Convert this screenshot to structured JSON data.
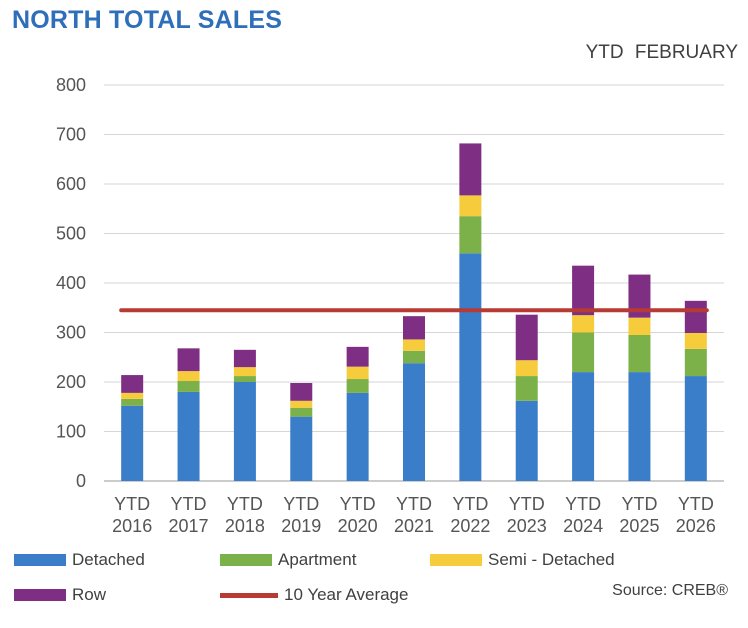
{
  "chart_data": {
    "type": "bar",
    "stacked": true,
    "title": "NORTH TOTAL SALES",
    "subtitle": "YTD  FEBRUARY",
    "categories": [
      [
        "YTD",
        "2016"
      ],
      [
        "YTD",
        "2017"
      ],
      [
        "YTD",
        "2018"
      ],
      [
        "YTD",
        "2019"
      ],
      [
        "YTD",
        "2020"
      ],
      [
        "YTD",
        "2021"
      ],
      [
        "YTD",
        "2022"
      ],
      [
        "YTD",
        "2023"
      ],
      [
        "YTD",
        "2024"
      ],
      [
        "YTD",
        "2025"
      ],
      [
        "YTD",
        "2026"
      ]
    ],
    "series": [
      {
        "name": "Detached",
        "color": "#3a7dc9",
        "values": [
          152,
          180,
          200,
          130,
          178,
          238,
          460,
          162,
          220,
          220,
          212
        ]
      },
      {
        "name": "Apartment",
        "color": "#7bb148",
        "values": [
          14,
          22,
          12,
          18,
          28,
          25,
          75,
          50,
          80,
          75,
          55
        ]
      },
      {
        "name": "Semi - Detached",
        "color": "#f7cc3c",
        "values": [
          12,
          20,
          18,
          14,
          25,
          23,
          42,
          32,
          35,
          35,
          32
        ]
      },
      {
        "name": "Row",
        "color": "#7e2f83",
        "values": [
          36,
          46,
          35,
          36,
          40,
          47,
          105,
          92,
          100,
          87,
          65
        ]
      }
    ],
    "reference_line": {
      "name": "10 Year Average",
      "value": 345,
      "color": "#b83a35"
    },
    "ylim": [
      0,
      800
    ],
    "yticks": [
      0,
      100,
      200,
      300,
      400,
      500,
      600,
      700,
      800
    ],
    "grid": true,
    "legend_position": "bottom",
    "source": "Source: CREB®"
  }
}
